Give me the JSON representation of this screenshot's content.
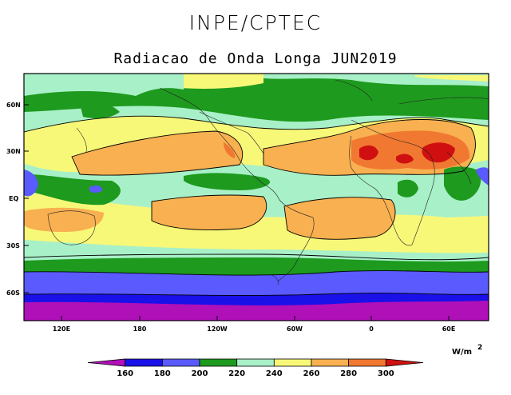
{
  "header": {
    "title": "INPE/CPTEC",
    "subtitle": "Radiacao de Onda Longa JUN2019"
  },
  "map": {
    "y_axis_labels": [
      "60N",
      "30N",
      "EQ",
      "30S",
      "60S"
    ],
    "x_axis_labels": [
      "120E",
      "180",
      "120W",
      "60W",
      "0",
      "60E"
    ]
  },
  "colorbar": {
    "unit_label": "W/m",
    "unit_exponent": "2",
    "levels": [
      "160",
      "180",
      "200",
      "220",
      "240",
      "260",
      "280",
      "300"
    ],
    "colors": [
      "#b010b8",
      "#1a10e8",
      "#5a5aff",
      "#1e9a1e",
      "#a8f0c8",
      "#f8f878",
      "#f8b050",
      "#f07830",
      "#d01010"
    ]
  }
}
